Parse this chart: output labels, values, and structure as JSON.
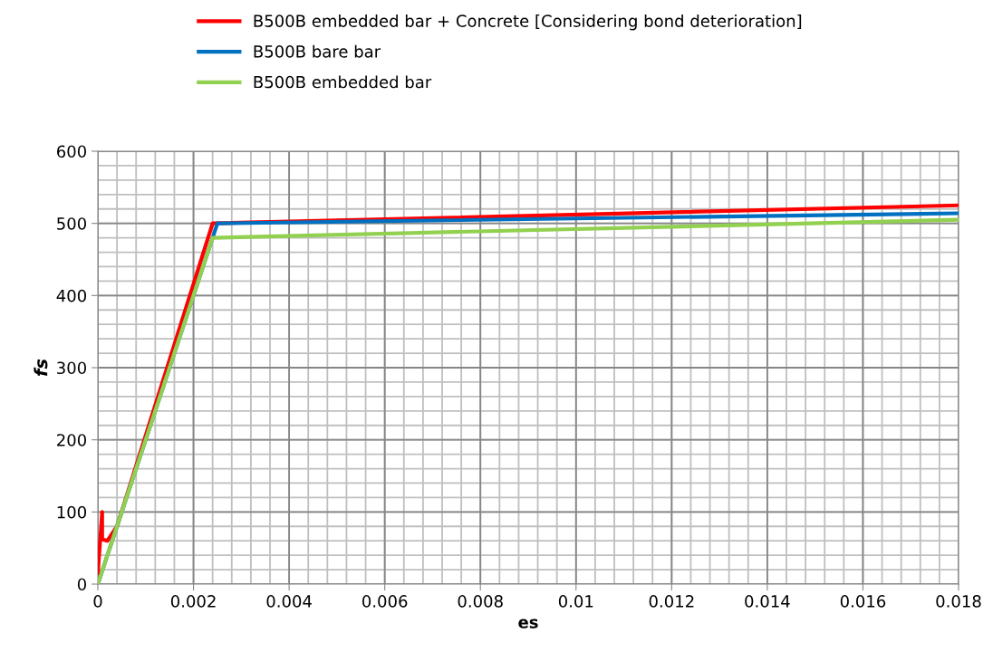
{
  "chart_data": {
    "type": "line",
    "xlabel": "es",
    "ylabel": "fs",
    "xlim": [
      0,
      0.018
    ],
    "xticks": [
      0,
      0.002,
      0.004,
      0.006,
      0.008,
      0.01,
      0.012,
      0.014,
      0.016,
      0.018
    ],
    "ylim": [
      0,
      600
    ],
    "yticks": [
      0,
      100,
      200,
      300,
      400,
      500,
      600
    ],
    "grid": true,
    "legend": "top",
    "marker": "none",
    "line_style": "solid",
    "series": [
      {
        "name": "B500B embedded bar + Concrete [Considering bond deterioration]",
        "color": "#ff0000",
        "x": [
          0,
          9e-05,
          9e-05,
          0.0002,
          0.0004,
          0.0024,
          0.018
        ],
        "values": [
          15,
          100,
          62,
          60,
          80,
          500,
          525
        ]
      },
      {
        "name": "B500B bare bar",
        "color": "#0070c0",
        "x": [
          0,
          0.0025,
          0.018
        ],
        "values": [
          0,
          500,
          514
        ]
      },
      {
        "name": "B500B embedded bar",
        "color": "#92d050",
        "x": [
          0,
          0.0024,
          0.018
        ],
        "values": [
          0,
          480,
          505
        ]
      }
    ]
  }
}
